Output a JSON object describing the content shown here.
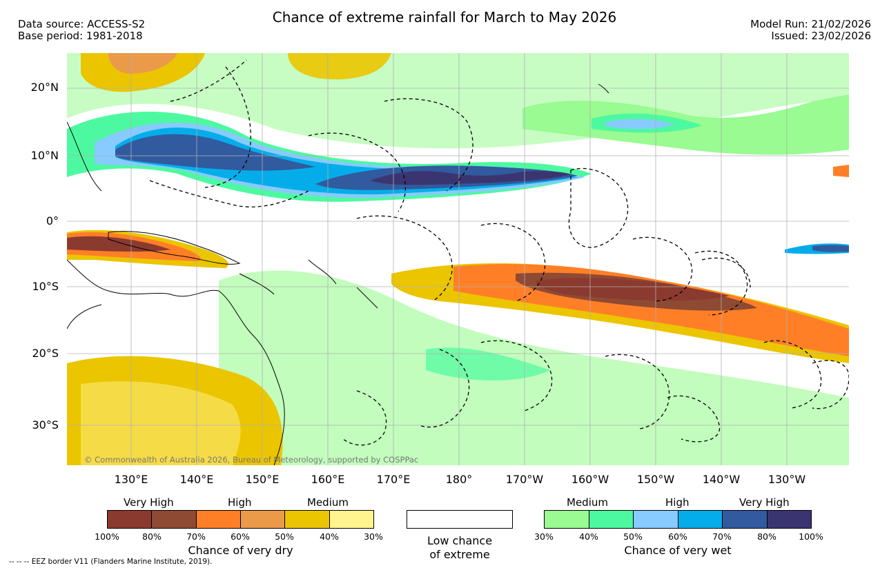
{
  "header": {
    "title": "Chance of extreme rainfall for March to May 2026",
    "data_source": "Data source: ACCESS-S2",
    "base_period": "Base period: 1981-2018",
    "model_run": "Model Run: 21/02/2026",
    "issued": "Issued: 23/02/2026"
  },
  "map": {
    "lat_labels": [
      "20°N",
      "10°N",
      "0°",
      "10°S",
      "20°S",
      "30°S"
    ],
    "lon_labels": [
      "130°E",
      "140°E",
      "150°E",
      "160°E",
      "170°E",
      "180°",
      "170°W",
      "160°W",
      "150°W",
      "140°W",
      "130°W"
    ],
    "copyright": "© Commonwealth of Australia 2026, Bureau of Meteorology, supported by COSPPac",
    "colors": {
      "land_outline": "#000000",
      "gridline": "#b0b0b0",
      "eez_border": "#000000"
    }
  },
  "legend": {
    "dry": {
      "categories": [
        "Very High",
        "High",
        "Medium"
      ],
      "ticks": [
        "100%",
        "80%",
        "70%",
        "60%",
        "50%",
        "40%",
        "30%"
      ],
      "colors": [
        "#8b3a2f",
        "#8e4a33",
        "#ff7f27",
        "#eb9a4a",
        "#ebc500",
        "#fff48d"
      ],
      "title": "Chance of very dry"
    },
    "low": {
      "line1": "Low chance",
      "line2": "of extreme"
    },
    "wet": {
      "categories": [
        "Medium",
        "High",
        "Very High"
      ],
      "ticks": [
        "30%",
        "40%",
        "50%",
        "60%",
        "70%",
        "80%",
        "100%"
      ],
      "colors": [
        "#99fb91",
        "#4df9a0",
        "#87cbff",
        "#04adea",
        "#325a9e",
        "#3a3570"
      ],
      "title": "Chance of very wet"
    },
    "eez_note": "--  --  -- EEZ border V11 (Flanders Marine Institute, 2019)."
  }
}
